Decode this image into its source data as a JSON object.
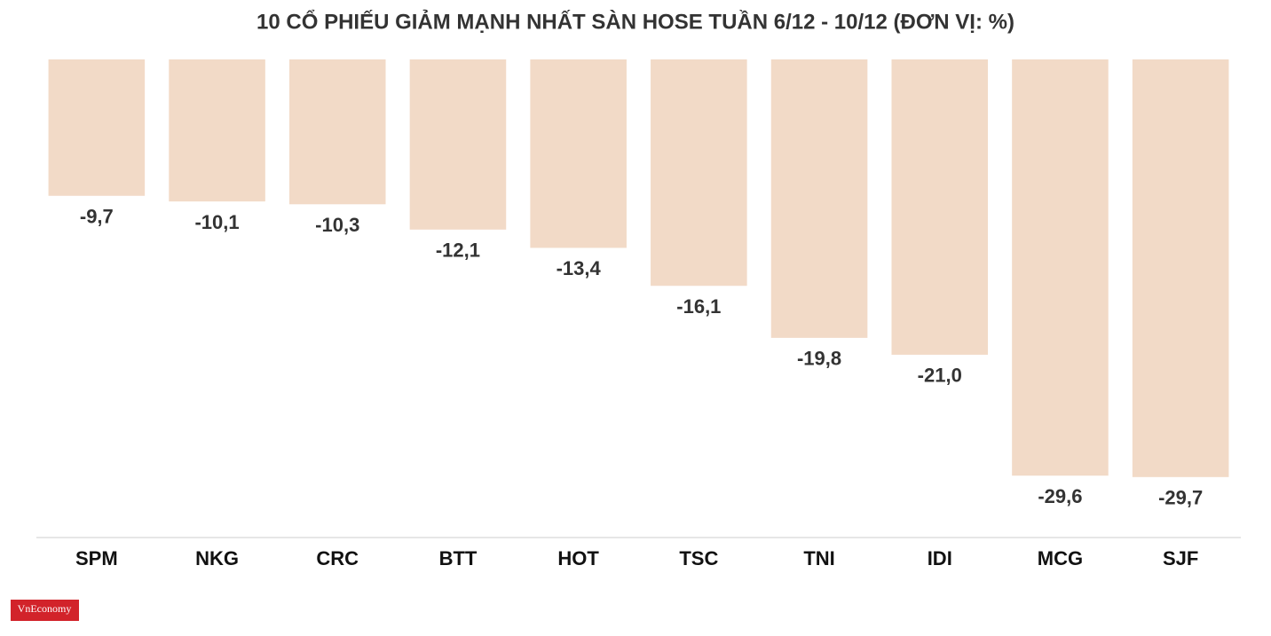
{
  "chart_data": {
    "type": "bar",
    "title": "10 CỔ PHIẾU GIẢM MẠNH NHẤT SÀN HOSE TUẦN 6/12 - 10/12 (ĐƠN VỊ: %)",
    "categories": [
      "SPM",
      "NKG",
      "CRC",
      "BTT",
      "HOT",
      "TSC",
      "TNI",
      "IDI",
      "MCG",
      "SJF"
    ],
    "values": [
      -9.7,
      -10.1,
      -10.3,
      -12.1,
      -13.4,
      -16.1,
      -19.8,
      -21.0,
      -29.6,
      -29.7
    ],
    "value_labels": [
      "-9,7",
      "-10,1",
      "-10,3",
      "-12,1",
      "-13,4",
      "-16,1",
      "-19,8",
      "-21,0",
      "-29,6",
      "-29,7"
    ],
    "color": "#f2dac7",
    "ylim": [
      -34,
      0
    ],
    "logo": "VnEconomy"
  }
}
